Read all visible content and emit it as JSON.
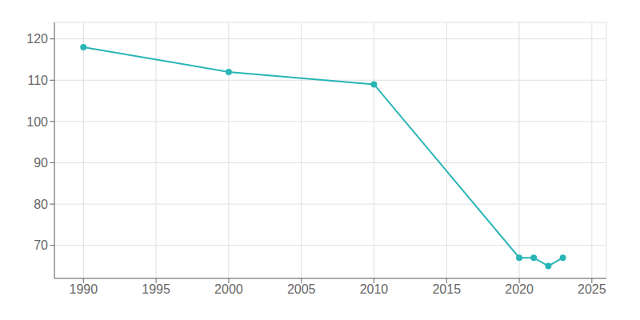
{
  "chart_data": {
    "type": "line",
    "x": [
      1990,
      2000,
      2010,
      2020,
      2021,
      2022,
      2023
    ],
    "values": [
      118,
      112,
      109,
      67,
      67,
      65,
      67
    ],
    "color": "#29b5b5",
    "marker": "circle",
    "xlim": [
      1988,
      2026
    ],
    "ylim": [
      62,
      124
    ],
    "xticks": [
      1990,
      1995,
      2000,
      2005,
      2010,
      2015,
      2020,
      2025
    ],
    "yticks": [
      70,
      80,
      90,
      100,
      110,
      120
    ],
    "grid": true
  }
}
